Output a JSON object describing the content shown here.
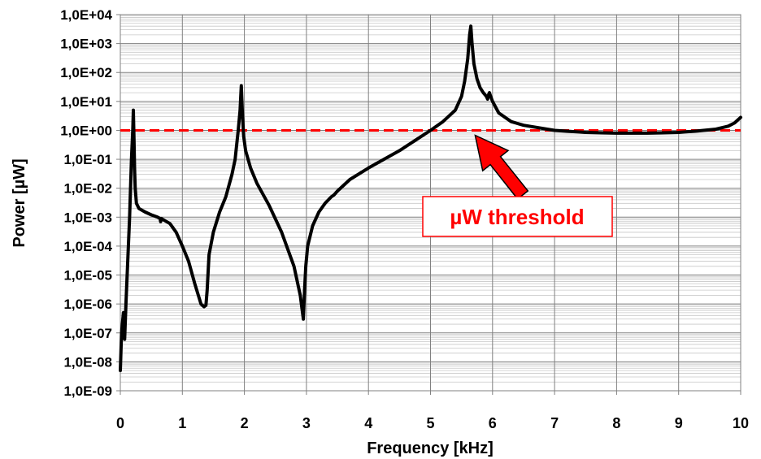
{
  "chart_data": {
    "type": "line",
    "title": "",
    "xlabel": "Frequency [kHz]",
    "ylabel": "Power [µW]",
    "xlim": [
      0,
      10
    ],
    "ylim": [
      1e-09,
      10000.0
    ],
    "y_scale": "log",
    "grid": true,
    "x_ticks": [
      "0",
      "1",
      "2",
      "3",
      "4",
      "5",
      "6",
      "7",
      "8",
      "9",
      "10"
    ],
    "y_ticks": [
      "1,0E-09",
      "1,0E-08",
      "1,0E-07",
      "1,0E-06",
      "1,0E-05",
      "1,0E-04",
      "1,0E-03",
      "1,0E-02",
      "1,0E-01",
      "1,0E+00",
      "1,0E+01",
      "1,0E+02",
      "1,0E+03",
      "1,0E+04"
    ],
    "series": [
      {
        "color": "#000000",
        "x": [
          0,
          0.02,
          0.05,
          0.07,
          0.09,
          0.11,
          0.15,
          0.18,
          0.2,
          0.21,
          0.22,
          0.23,
          0.24,
          0.26,
          0.3,
          0.4,
          0.5,
          0.6,
          0.64,
          0.65,
          0.66,
          0.7,
          0.8,
          0.9,
          1.0,
          1.1,
          1.2,
          1.3,
          1.35,
          1.38,
          1.4,
          1.43,
          1.5,
          1.6,
          1.7,
          1.8,
          1.85,
          1.9,
          1.93,
          1.95,
          1.97,
          1.99,
          2.02,
          2.1,
          2.2,
          2.4,
          2.6,
          2.8,
          2.9,
          2.95,
          2.97,
          2.99,
          3.02,
          3.1,
          3.2,
          3.3,
          3.4,
          3.45,
          3.5,
          3.7,
          4.0,
          4.5,
          5.0,
          5.2,
          5.4,
          5.5,
          5.55,
          5.6,
          5.63,
          5.65,
          5.67,
          5.7,
          5.75,
          5.8,
          5.85,
          5.9,
          5.92,
          5.94,
          5.95,
          5.97,
          6.0,
          6.1,
          6.3,
          6.5,
          7.0,
          7.5,
          8.0,
          8.5,
          9.0,
          9.3,
          9.6,
          9.8,
          9.9,
          10.0
        ],
        "y": [
          5e-09,
          1e-07,
          5e-07,
          6e-08,
          1e-06,
          1e-05,
          0.001,
          0.1,
          1,
          5,
          0.5,
          0.05,
          0.01,
          0.003,
          0.002,
          0.0015,
          0.0012,
          0.001,
          0.0009,
          0.0007,
          0.0009,
          0.0008,
          0.0006,
          0.0003,
          0.0001,
          3e-05,
          5e-06,
          1e-06,
          8e-07,
          9e-07,
          3e-06,
          5e-05,
          0.0003,
          0.0015,
          0.005,
          0.03,
          0.1,
          1,
          5,
          35,
          3,
          0.6,
          0.2,
          0.05,
          0.015,
          0.0025,
          0.0003,
          2e-05,
          2e-06,
          3e-07,
          3e-06,
          2e-05,
          0.0001,
          0.0005,
          0.0015,
          0.003,
          0.005,
          0.006,
          0.008,
          0.02,
          0.05,
          0.2,
          1,
          2,
          5,
          15,
          50,
          300,
          2000,
          4000,
          1000,
          200,
          60,
          30,
          20,
          15,
          12,
          18,
          20,
          15,
          10,
          4,
          2,
          1.5,
          1,
          0.85,
          0.8,
          0.8,
          0.85,
          0.95,
          1.1,
          1.4,
          1.8,
          2.8
        ]
      }
    ],
    "threshold": {
      "value": 1,
      "color": "#ff0000",
      "style": "dashed"
    },
    "annotation": {
      "text": "µW threshold",
      "points_to": [
        5.72,
        1
      ],
      "color": "#ff0000"
    }
  }
}
